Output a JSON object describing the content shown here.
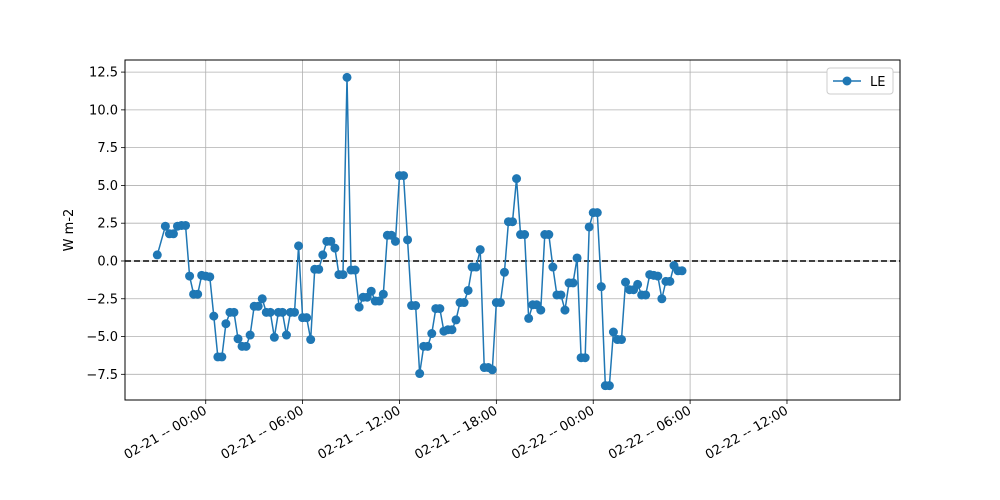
{
  "chart_data": {
    "type": "line",
    "title": "",
    "xlabel": "",
    "ylabel": "W m-2",
    "ylim": [
      -9.2,
      13.3
    ],
    "yticks": [
      -7.5,
      -5.0,
      -2.5,
      0.0,
      2.5,
      5.0,
      7.5,
      10.0,
      12.5
    ],
    "ytick_labels": [
      "−7.5",
      "−5.0",
      "−2.5",
      "0.0",
      "2.5",
      "5.0",
      "7.5",
      "10.0",
      "12.5"
    ],
    "xlim": [
      "2013-02-20T19:00",
      "2013-02-22T19:00"
    ],
    "xticks": [
      "2013-02-21T00:00",
      "2013-02-21T06:00",
      "2013-02-21T12:00",
      "2013-02-21T18:00",
      "2013-02-22T00:00",
      "2013-02-22T06:00",
      "2013-02-22T12:00"
    ],
    "xtick_labels": [
      "02-21 -- 00:00",
      "02-21 -- 06:00",
      "02-21 -- 12:00",
      "02-21 -- 18:00",
      "02-22 -- 00:00",
      "02-22 -- 06:00",
      "02-22 -- 12:00"
    ],
    "grid": true,
    "zero_line": {
      "y": 0,
      "style": "dashed",
      "color": "#000000"
    },
    "legend": {
      "position": "top-right",
      "entries": [
        "LE"
      ]
    },
    "colors": {
      "series": "#1f77b4"
    },
    "series": [
      {
        "name": "LE",
        "marker": "circle",
        "points": [
          [
            "2013-02-20T21:00",
            0.4
          ],
          [
            "2013-02-20T21:30",
            2.3
          ],
          [
            "2013-02-20T21:45",
            1.8
          ],
          [
            "2013-02-20T22:00",
            1.8
          ],
          [
            "2013-02-20T22:15",
            2.3
          ],
          [
            "2013-02-20T22:30",
            2.35
          ],
          [
            "2013-02-20T22:45",
            2.35
          ],
          [
            "2013-02-20T23:00",
            -1.0
          ],
          [
            "2013-02-20T23:15",
            -2.2
          ],
          [
            "2013-02-20T23:30",
            -2.2
          ],
          [
            "2013-02-20T23:45",
            -0.95
          ],
          [
            "2013-02-21T00:00",
            -1.0
          ],
          [
            "2013-02-21T00:15",
            -1.05
          ],
          [
            "2013-02-21T00:30",
            -3.65
          ],
          [
            "2013-02-21T00:45",
            -6.35
          ],
          [
            "2013-02-21T01:00",
            -6.35
          ],
          [
            "2013-02-21T01:15",
            -4.15
          ],
          [
            "2013-02-21T01:30",
            -3.4
          ],
          [
            "2013-02-21T01:45",
            -3.4
          ],
          [
            "2013-02-21T02:00",
            -5.15
          ],
          [
            "2013-02-21T02:15",
            -5.65
          ],
          [
            "2013-02-21T02:30",
            -5.65
          ],
          [
            "2013-02-21T02:45",
            -4.9
          ],
          [
            "2013-02-21T03:00",
            -3.0
          ],
          [
            "2013-02-21T03:15",
            -3.0
          ],
          [
            "2013-02-21T03:30",
            -2.5
          ],
          [
            "2013-02-21T03:45",
            -3.4
          ],
          [
            "2013-02-21T04:00",
            -3.4
          ],
          [
            "2013-02-21T04:15",
            -5.05
          ],
          [
            "2013-02-21T04:30",
            -3.4
          ],
          [
            "2013-02-21T04:45",
            -3.4
          ],
          [
            "2013-02-21T05:00",
            -4.9
          ],
          [
            "2013-02-21T05:15",
            -3.4
          ],
          [
            "2013-02-21T05:30",
            -3.4
          ],
          [
            "2013-02-21T05:45",
            1.0
          ],
          [
            "2013-02-21T06:00",
            -3.75
          ],
          [
            "2013-02-21T06:15",
            -3.75
          ],
          [
            "2013-02-21T06:30",
            -5.2
          ],
          [
            "2013-02-21T06:45",
            -0.55
          ],
          [
            "2013-02-21T07:00",
            -0.55
          ],
          [
            "2013-02-21T07:15",
            0.4
          ],
          [
            "2013-02-21T07:30",
            1.3
          ],
          [
            "2013-02-21T07:45",
            1.3
          ],
          [
            "2013-02-21T08:00",
            0.85
          ],
          [
            "2013-02-21T08:15",
            -0.9
          ],
          [
            "2013-02-21T08:30",
            -0.9
          ],
          [
            "2013-02-21T08:45",
            12.15
          ],
          [
            "2013-02-21T09:00",
            -0.6
          ],
          [
            "2013-02-21T09:15",
            -0.6
          ],
          [
            "2013-02-21T09:30",
            -3.05
          ],
          [
            "2013-02-21T09:45",
            -2.4
          ],
          [
            "2013-02-21T10:00",
            -2.4
          ],
          [
            "2013-02-21T10:15",
            -2.0
          ],
          [
            "2013-02-21T10:30",
            -2.65
          ],
          [
            "2013-02-21T10:45",
            -2.65
          ],
          [
            "2013-02-21T11:00",
            -2.2
          ],
          [
            "2013-02-21T11:15",
            1.7
          ],
          [
            "2013-02-21T11:30",
            1.7
          ],
          [
            "2013-02-21T11:45",
            1.3
          ],
          [
            "2013-02-21T12:00",
            5.65
          ],
          [
            "2013-02-21T12:15",
            5.65
          ],
          [
            "2013-02-21T12:30",
            1.4
          ],
          [
            "2013-02-21T12:45",
            -2.95
          ],
          [
            "2013-02-21T13:00",
            -2.95
          ],
          [
            "2013-02-21T13:15",
            -7.45
          ],
          [
            "2013-02-21T13:30",
            -5.65
          ],
          [
            "2013-02-21T13:45",
            -5.65
          ],
          [
            "2013-02-21T14:00",
            -4.8
          ],
          [
            "2013-02-21T14:15",
            -3.15
          ],
          [
            "2013-02-21T14:30",
            -3.15
          ],
          [
            "2013-02-21T14:45",
            -4.65
          ],
          [
            "2013-02-21T15:00",
            -4.55
          ],
          [
            "2013-02-21T15:15",
            -4.55
          ],
          [
            "2013-02-21T15:30",
            -3.9
          ],
          [
            "2013-02-21T15:45",
            -2.75
          ],
          [
            "2013-02-21T16:00",
            -2.75
          ],
          [
            "2013-02-21T16:15",
            -1.95
          ],
          [
            "2013-02-21T16:30",
            -0.4
          ],
          [
            "2013-02-21T16:45",
            -0.4
          ],
          [
            "2013-02-21T17:00",
            0.75
          ],
          [
            "2013-02-21T17:15",
            -7.05
          ],
          [
            "2013-02-21T17:30",
            -7.05
          ],
          [
            "2013-02-21T17:45",
            -7.2
          ],
          [
            "2013-02-21T18:00",
            -2.75
          ],
          [
            "2013-02-21T18:15",
            -2.75
          ],
          [
            "2013-02-21T18:30",
            -0.75
          ],
          [
            "2013-02-21T18:45",
            2.6
          ],
          [
            "2013-02-21T19:00",
            2.6
          ],
          [
            "2013-02-21T19:15",
            5.45
          ],
          [
            "2013-02-21T19:30",
            1.75
          ],
          [
            "2013-02-21T19:45",
            1.75
          ],
          [
            "2013-02-21T20:00",
            -3.8
          ],
          [
            "2013-02-21T20:15",
            -2.9
          ],
          [
            "2013-02-21T20:30",
            -2.9
          ],
          [
            "2013-02-21T20:45",
            -3.25
          ],
          [
            "2013-02-21T21:00",
            1.75
          ],
          [
            "2013-02-21T21:15",
            1.75
          ],
          [
            "2013-02-21T21:30",
            -0.4
          ],
          [
            "2013-02-21T21:45",
            -2.25
          ],
          [
            "2013-02-21T22:00",
            -2.25
          ],
          [
            "2013-02-21T22:15",
            -3.25
          ],
          [
            "2013-02-21T22:30",
            -1.45
          ],
          [
            "2013-02-21T22:45",
            -1.45
          ],
          [
            "2013-02-21T23:00",
            0.2
          ],
          [
            "2013-02-21T23:15",
            -6.4
          ],
          [
            "2013-02-21T23:30",
            -6.4
          ],
          [
            "2013-02-21T23:45",
            2.25
          ],
          [
            "2013-02-22T00:00",
            3.2
          ],
          [
            "2013-02-22T00:15",
            3.2
          ],
          [
            "2013-02-22T00:30",
            -1.7
          ],
          [
            "2013-02-22T00:45",
            -8.25
          ],
          [
            "2013-02-22T01:00",
            -8.25
          ],
          [
            "2013-02-22T01:15",
            -4.7
          ],
          [
            "2013-02-22T01:30",
            -5.2
          ],
          [
            "2013-02-22T01:45",
            -5.2
          ],
          [
            "2013-02-22T02:00",
            -1.4
          ],
          [
            "2013-02-22T02:15",
            -1.9
          ],
          [
            "2013-02-22T02:30",
            -1.9
          ],
          [
            "2013-02-22T02:45",
            -1.55
          ],
          [
            "2013-02-22T03:00",
            -2.25
          ],
          [
            "2013-02-22T03:15",
            -2.25
          ],
          [
            "2013-02-22T03:30",
            -0.9
          ],
          [
            "2013-02-22T03:45",
            -0.95
          ],
          [
            "2013-02-22T04:00",
            -1.0
          ],
          [
            "2013-02-22T04:15",
            -2.5
          ],
          [
            "2013-02-22T04:30",
            -1.35
          ],
          [
            "2013-02-22T04:45",
            -1.35
          ],
          [
            "2013-02-22T05:00",
            -0.3
          ],
          [
            "2013-02-22T05:15",
            -0.65
          ],
          [
            "2013-02-22T05:30",
            -0.65
          ]
        ]
      }
    ]
  }
}
